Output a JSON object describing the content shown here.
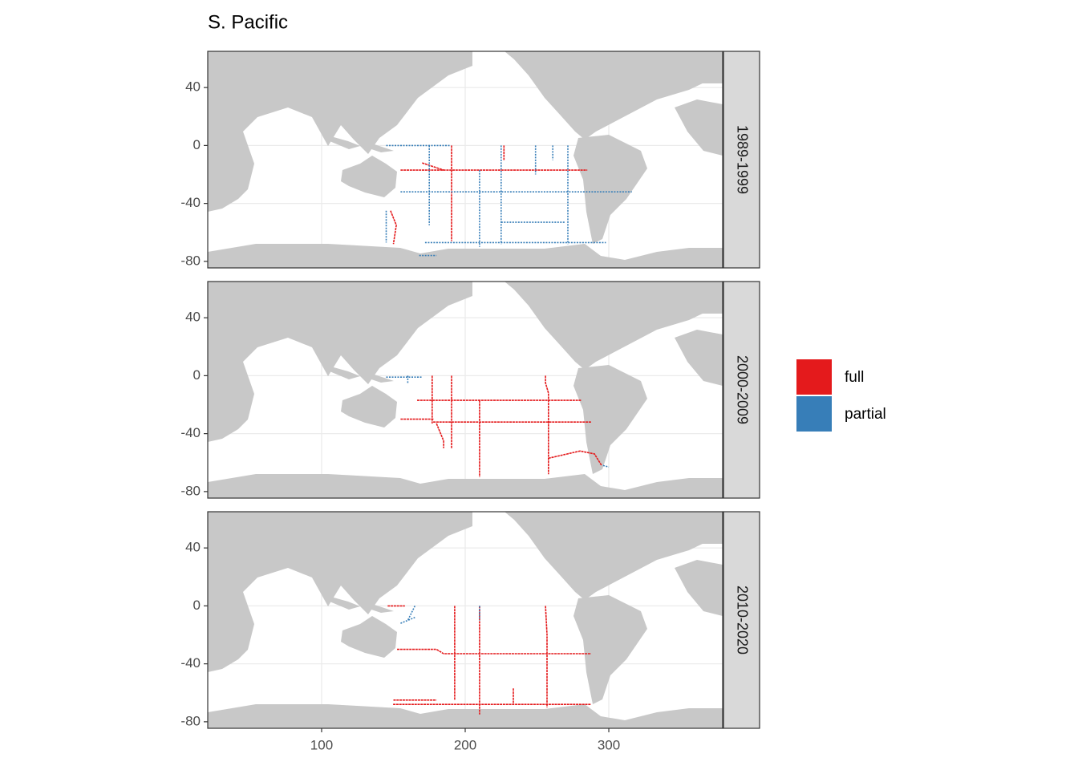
{
  "chart_data": {
    "type": "map",
    "title": "S. Pacific",
    "xlim": [
      20.7,
      379.3
    ],
    "ylim": [
      -84.5,
      65
    ],
    "xticks": [
      100,
      200,
      300
    ],
    "yticks": [
      -80,
      -40,
      0,
      40
    ],
    "grid": true,
    "legend": "right",
    "series": [
      {
        "name": "full",
        "color": "#E41A1C"
      },
      {
        "name": "partial",
        "color": "#377EB8"
      }
    ],
    "facets": [
      {
        "label": "1989-1999",
        "series": [
          [
            {
              "x": [
                155,
                285
              ],
              "y": [
                -17,
                -17
              ]
            },
            {
              "x": [
                190.5,
                190.5
              ],
              "y": [
                0,
                -66
              ]
            },
            {
              "x": [
                148,
                152,
                150
              ],
              "y": [
                -45,
                -55,
                -68
              ]
            },
            {
              "x": [
                227,
                227
              ],
              "y": [
                0,
                -10
              ]
            },
            {
              "x": [
                170,
                185
              ],
              "y": [
                -12,
                -17
              ]
            }
          ],
          [
            {
              "x": [
                210,
                210
              ],
              "y": [
                -17,
                -70
              ]
            },
            {
              "x": [
                155,
                316
              ],
              "y": [
                -32,
                -32
              ]
            },
            {
              "x": [
                271.5,
                271.5
              ],
              "y": [
                0,
                -68
              ]
            },
            {
              "x": [
                225,
                225
              ],
              "y": [
                0,
                -68
              ]
            },
            {
              "x": [
                225,
                270
              ],
              "y": [
                -53,
                -53
              ]
            },
            {
              "x": [
                172,
                298
              ],
              "y": [
                -67,
                -67
              ]
            },
            {
              "x": [
                249,
                249
              ],
              "y": [
                0,
                -20
              ]
            },
            {
              "x": [
                261,
                261
              ],
              "y": [
                0,
                -10
              ]
            },
            {
              "x": [
                175,
                175
              ],
              "y": [
                0,
                -55
              ]
            },
            {
              "x": [
                145,
                145
              ],
              "y": [
                -45,
                -67
              ]
            },
            {
              "x": [
                168,
                180
              ],
              "y": [
                -76,
                -76
              ]
            },
            {
              "x": [
                145,
                190
              ],
              "y": [
                0,
                0
              ]
            }
          ]
        ]
      },
      {
        "label": "2000-2009",
        "series": [
          [
            {
              "x": [
                210,
                210
              ],
              "y": [
                -17,
                -70
              ]
            },
            {
              "x": [
                166.5,
                281
              ],
              "y": [
                -17,
                -17
              ]
            },
            {
              "x": [
                177.7,
                287.7
              ],
              "y": [
                -32,
                -32
              ]
            },
            {
              "x": [
                190.5,
                190.5
              ],
              "y": [
                0,
                -50
              ]
            },
            {
              "x": [
                255.9,
                255.9,
                258,
                258
              ],
              "y": [
                0,
                -5,
                -12,
                -68
              ]
            },
            {
              "x": [
                177,
                177
              ],
              "y": [
                0,
                -33
              ]
            },
            {
              "x": [
                155,
                178
              ],
              "y": [
                -30,
                -30
              ]
            },
            {
              "x": [
                258,
                280,
                290,
                295
              ],
              "y": [
                -57,
                -52,
                -54,
                -62
              ]
            },
            {
              "x": [
                180,
                185,
                185
              ],
              "y": [
                -33,
                -45,
                -50
              ]
            }
          ],
          [
            {
              "x": [
                145,
                170
              ],
              "y": [
                -1,
                -1
              ]
            },
            {
              "x": [
                160,
                160
              ],
              "y": [
                0,
                -5
              ]
            },
            {
              "x": [
                296,
                300
              ],
              "y": [
                -62,
                -63
              ]
            }
          ]
        ]
      },
      {
        "label": "2010-2020",
        "series": [
          [
            {
              "x": [
                152.5,
                180,
                185,
                287.7
              ],
              "y": [
                -30,
                -30,
                -33,
                -33
              ]
            },
            {
              "x": [
                210,
                210
              ],
              "y": [
                0,
                -75
              ]
            },
            {
              "x": [
                255.9,
                257,
                257
              ],
              "y": [
                0,
                -20,
                -70
              ]
            },
            {
              "x": [
                192.7,
                192.7
              ],
              "y": [
                0,
                -65
              ]
            },
            {
              "x": [
                149.8,
                287.7
              ],
              "y": [
                -68,
                -68
              ]
            },
            {
              "x": [
                233.5,
                233.5
              ],
              "y": [
                -57,
                -68
              ]
            },
            {
              "x": [
                146,
                158
              ],
              "y": [
                0,
                0
              ]
            },
            {
              "x": [
                150,
                180
              ],
              "y": [
                -65,
                -65
              ]
            }
          ],
          [
            {
              "x": [
                165,
                160
              ],
              "y": [
                0,
                -10
              ]
            },
            {
              "x": [
                210,
                210
              ],
              "y": [
                0,
                -10
              ]
            },
            {
              "x": [
                155,
                165
              ],
              "y": [
                -12,
                -8
              ]
            }
          ]
        ]
      }
    ]
  }
}
